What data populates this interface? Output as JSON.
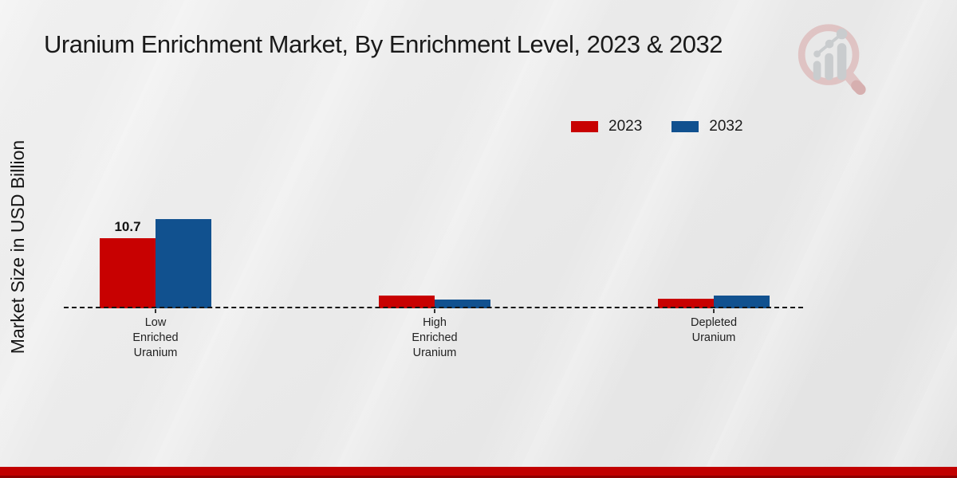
{
  "title": "Uranium Enrichment Market, By Enrichment Level, 2023 & 2032",
  "y_axis_label": "Market Size in USD Billion",
  "colors": {
    "series_2023": "#c80101",
    "series_2032": "#11518f",
    "footer_bright": "#c10000",
    "footer_dark": "#8e0000",
    "title_text": "#1a1a1a"
  },
  "logo": {
    "name": "market-research-magnifier-bar-chart-logo",
    "magnifier_color": "#dfc0c0",
    "bars_color": "#c6c9cc"
  },
  "chart_data": {
    "type": "bar",
    "title": "Uranium Enrichment Market, By Enrichment Level, 2023 & 2032",
    "ylabel": "Market Size in USD Billion",
    "categories": [
      "Low\nEnriched\nUranium",
      "High\nEnriched\nUranium",
      "Depleted\nUranium"
    ],
    "series": [
      {
        "name": "2023",
        "color": "#c80101",
        "values": [
          10.7,
          1.9,
          1.45
        ]
      },
      {
        "name": "2032",
        "color": "#11518f",
        "values": [
          13.6,
          1.35,
          1.95
        ]
      }
    ],
    "annotations": [
      {
        "series_index": 0,
        "category_index": 0,
        "text": "10.7"
      }
    ],
    "ylim": [
      0,
      14
    ],
    "baseline_style": "dashed",
    "grid": false,
    "legend_position": "top-right"
  }
}
